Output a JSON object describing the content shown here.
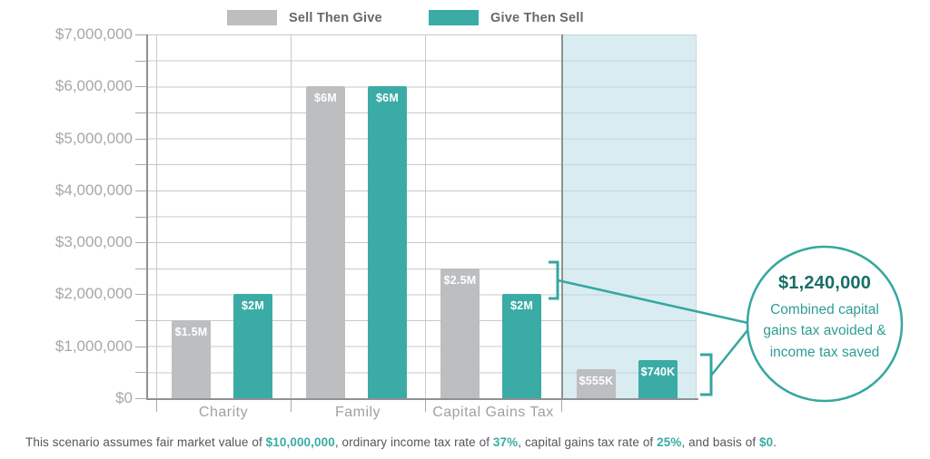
{
  "colors": {
    "accent_teal": "#3aaca5",
    "bar_gray": "#bcbec0",
    "highlight_blue": "#d8ecf2",
    "callout_amount_teal": "#186f69",
    "callout_body_teal": "#2f9d96"
  },
  "legend": {
    "items": [
      {
        "label": "Sell Then Give",
        "color": "#bcbec0"
      },
      {
        "label": "Give Then Sell",
        "color": "#3aaca5"
      }
    ]
  },
  "chart_data": {
    "type": "bar",
    "title": "",
    "categories": [
      "Charity",
      "Family",
      "Capital Gains Tax",
      ""
    ],
    "series": [
      {
        "name": "Sell Then Give",
        "color": "#bcbec0",
        "values": [
          1500000,
          6000000,
          2500000,
          555000
        ],
        "bar_labels": [
          "$1.5M",
          "$6M",
          "$2.5M",
          "$555K"
        ]
      },
      {
        "name": "Give Then Sell",
        "color": "#3aaca5",
        "values": [
          2000000,
          6000000,
          2000000,
          740000
        ],
        "bar_labels": [
          "$2M",
          "$6M",
          "$2M",
          "$740K"
        ]
      }
    ],
    "xlabel": "",
    "ylabel": "",
    "ylim": [
      0,
      7000000
    ],
    "y_major_step": 1000000,
    "y_minor_step": 500000,
    "y_tick_labels": [
      "$7,000,000",
      "$6,000,000",
      "$5,000,000",
      "$4,000,000",
      "$3,000,000",
      "$2,000,000",
      "$1,000,000",
      "$0"
    ],
    "grid": true,
    "legend_position": "top",
    "highlighted_category_index": 3,
    "highlight_color": "#d8ecf2"
  },
  "callout": {
    "amount": "$1,240,000",
    "lines": [
      "Combined capital",
      "gains tax avoided &",
      "income tax saved"
    ]
  },
  "footnote": {
    "segments": [
      {
        "text": "This scenario assumes fair market value of ",
        "em": false
      },
      {
        "text": "$10,000,000",
        "em": true
      },
      {
        "text": ", ordinary income tax rate of ",
        "em": false
      },
      {
        "text": "37%",
        "em": true
      },
      {
        "text": ", capital gains tax rate of ",
        "em": false
      },
      {
        "text": "25%",
        "em": true
      },
      {
        "text": ", and basis of ",
        "em": false
      },
      {
        "text": "$0",
        "em": true
      },
      {
        "text": ".",
        "em": false
      }
    ]
  }
}
